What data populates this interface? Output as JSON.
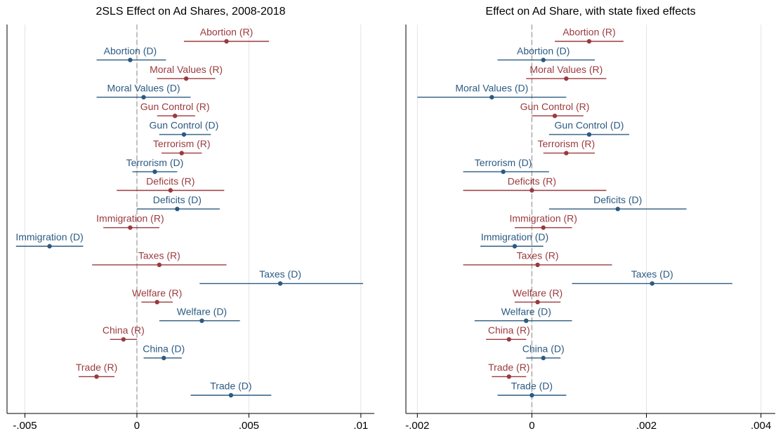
{
  "chart_data": [
    {
      "type": "coefplot",
      "title": "2SLS Effect on Ad Shares, 2008-2018",
      "categories": [
        "Abortion (R)",
        "Abortion (D)",
        "Moral Values (R)",
        "Moral Values (D)",
        "Gun Control (R)",
        "Gun Control (D)",
        "Terrorism (R)",
        "Terrorism (D)",
        "Deficits (R)",
        "Deficits (D)",
        "Immigration (R)",
        "Immigration (D)",
        "Taxes (R)",
        "Taxes (D)",
        "Welfare (R)",
        "Welfare (D)",
        "China (R)",
        "China (D)",
        "Trade (R)",
        "Trade (D)"
      ],
      "values": [
        0.004,
        -0.0003,
        0.0022,
        0.0003,
        0.0017,
        0.0021,
        0.002,
        0.0008,
        0.0015,
        0.0018,
        -0.0003,
        -0.0039,
        0.001,
        0.0064,
        0.0009,
        0.0029,
        -0.0006,
        0.0012,
        -0.0018,
        0.0042
      ],
      "ci_low": [
        0.0021,
        -0.0018,
        0.0009,
        -0.0018,
        0.0009,
        0.001,
        0.0011,
        -0.0002,
        -0.0009,
        0.0,
        -0.0015,
        -0.0054,
        -0.002,
        0.0028,
        0.0002,
        0.001,
        -0.0012,
        0.0003,
        -0.0026,
        0.0024
      ],
      "ci_high": [
        0.0059,
        0.0013,
        0.0035,
        0.0024,
        0.0026,
        0.0033,
        0.0029,
        0.0018,
        0.0039,
        0.0037,
        0.001,
        -0.0024,
        0.004,
        0.0101,
        0.0016,
        0.0046,
        0.0,
        0.002,
        -0.001,
        0.006
      ],
      "colors": [
        "#9b3a3e",
        "#2b5a82",
        "#9b3a3e",
        "#2b5a82",
        "#9b3a3e",
        "#2b5a82",
        "#9b3a3e",
        "#2b5a82",
        "#9b3a3e",
        "#2b5a82",
        "#9b3a3e",
        "#2b5a82",
        "#9b3a3e",
        "#2b5a82",
        "#9b3a3e",
        "#2b5a82",
        "#9b3a3e",
        "#2b5a82",
        "#9b3a3e",
        "#2b5a82"
      ],
      "xlim": [
        -0.0058,
        0.0106
      ],
      "xticks": [
        {
          "value": -0.005,
          "label": "-.005"
        },
        0,
        {
          "value": 0.005,
          "label": ".005"
        },
        {
          "value": 0.01,
          "label": ".01"
        }
      ],
      "reference_line": 0,
      "grid": true
    },
    {
      "type": "coefplot",
      "title": "Effect on Ad Share, with state fixed effects",
      "categories": [
        "Abortion (R)",
        "Abortion (D)",
        "Moral Values (R)",
        "Moral Values (D)",
        "Gun Control (R)",
        "Gun Control (D)",
        "Terrorism (R)",
        "Terrorism (D)",
        "Deficits (R)",
        "Deficits (D)",
        "Immigration (R)",
        "Immigration (D)",
        "Taxes (R)",
        "Taxes (D)",
        "Welfare (R)",
        "Welfare (D)",
        "China (R)",
        "China (D)",
        "Trade (R)",
        "Trade (D)"
      ],
      "values": [
        0.001,
        0.0002,
        0.0006,
        -0.0007,
        0.0004,
        0.001,
        0.0006,
        -0.0005,
        0.0,
        0.0015,
        0.0002,
        -0.0003,
        0.0001,
        0.0021,
        0.0001,
        -0.0001,
        -0.0004,
        0.0002,
        -0.0004,
        0.0
      ],
      "ci_low": [
        0.0004,
        -0.0006,
        -0.0001,
        -0.002,
        0.0,
        0.0003,
        0.0002,
        -0.0012,
        -0.0012,
        0.0003,
        -0.0003,
        -0.0009,
        -0.0012,
        0.0007,
        -0.0003,
        -0.001,
        -0.0008,
        -0.0001,
        -0.0007,
        -0.0006
      ],
      "ci_high": [
        0.0016,
        0.0011,
        0.0013,
        0.0006,
        0.0009,
        0.0017,
        0.0011,
        0.0003,
        0.0013,
        0.0027,
        0.0007,
        0.0002,
        0.0014,
        0.0035,
        0.0005,
        0.0007,
        -0.0001,
        0.0005,
        -0.0001,
        0.0006
      ],
      "colors": [
        "#9b3a3e",
        "#2b5a82",
        "#9b3a3e",
        "#2b5a82",
        "#9b3a3e",
        "#2b5a82",
        "#9b3a3e",
        "#2b5a82",
        "#9b3a3e",
        "#2b5a82",
        "#9b3a3e",
        "#2b5a82",
        "#9b3a3e",
        "#2b5a82",
        "#9b3a3e",
        "#2b5a82",
        "#9b3a3e",
        "#2b5a82",
        "#9b3a3e",
        "#2b5a82"
      ],
      "xlim": [
        -0.0022,
        0.00425
      ],
      "xticks": [
        {
          "value": -0.002,
          "label": "-.002"
        },
        0,
        {
          "value": 0.002,
          "label": ".002"
        },
        {
          "value": 0.004,
          "label": ".004"
        }
      ],
      "reference_line": 0,
      "grid": true
    }
  ]
}
